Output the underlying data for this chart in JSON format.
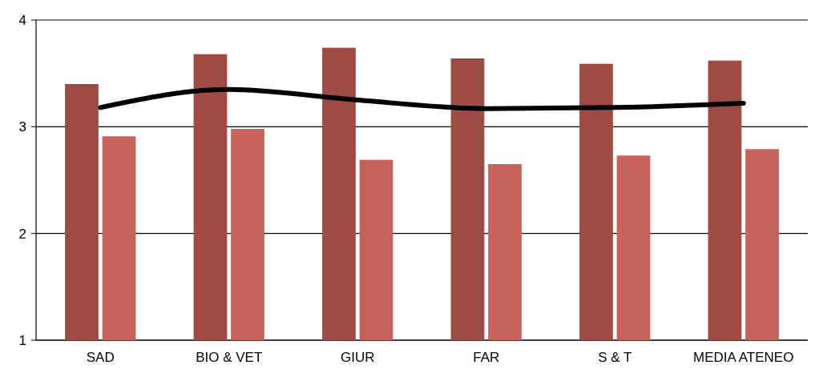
{
  "chart_data": {
    "type": "bar",
    "categories": [
      "SAD",
      "BIO & VET",
      "GIUR",
      "FAR",
      "S & T",
      "MEDIA ATENEO"
    ],
    "series": [
      {
        "color": "#9e4a45",
        "values": [
          3.4,
          3.68,
          3.74,
          3.64,
          3.59,
          3.62
        ]
      },
      {
        "color": "#c8625c",
        "values": [
          2.91,
          2.98,
          2.69,
          2.65,
          2.73,
          2.79
        ]
      },
      {
        "type": "line",
        "color": "#000000",
        "values": [
          3.18,
          3.35,
          3.25,
          3.17,
          3.18,
          3.22
        ]
      }
    ],
    "ylim": [
      1,
      4
    ],
    "yticks": [
      1,
      2,
      3,
      4
    ],
    "grid": "y",
    "marker": "none",
    "line_style": "solid"
  }
}
